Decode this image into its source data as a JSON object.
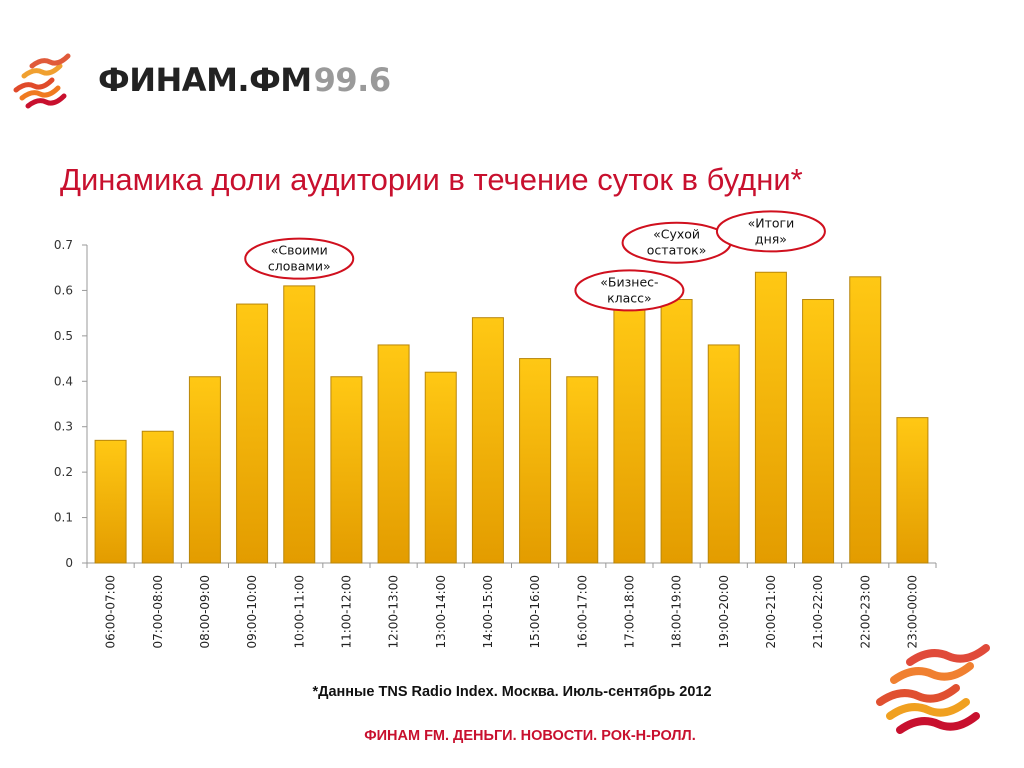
{
  "logo": {
    "name": "ФИНАМ.ФМ",
    "frequency": "99.6"
  },
  "title": "Динамика доли аудитории в течение суток в будни*",
  "footnote": "*Данные TNS Radio Index. Москва. Июль-сентябрь 2012",
  "slogan": "ФИНАМ FM. ДЕНЬГИ. НОВОСТИ. РОК-Н-РОЛЛ.",
  "colors": {
    "accent": "#c8102e",
    "bar_top": "#ffc40a",
    "bar_bottom": "#e8a300",
    "bar_edge": "#b07800"
  },
  "chart_data": {
    "type": "bar",
    "title": "",
    "xlabel": "",
    "ylabel": "",
    "ylim": [
      0,
      0.7
    ],
    "yticks": [
      0,
      0.1,
      0.2,
      0.3,
      0.4,
      0.5,
      0.6,
      0.7
    ],
    "ytick_labels": [
      "0",
      "0.1",
      "0.2",
      "0.3",
      "0.4",
      "0.5",
      "0.6",
      "0.7"
    ],
    "grid": false,
    "legend": "none",
    "categories": [
      "06:00-07:00",
      "07:00-08:00",
      "08:00-09:00",
      "09:00-10:00",
      "10:00-11:00",
      "11:00-12:00",
      "12:00-13:00",
      "13:00-14:00",
      "14:00-15:00",
      "15:00-16:00",
      "16:00-17:00",
      "17:00-18:00",
      "18:00-19:00",
      "19:00-20:00",
      "20:00-21:00",
      "21:00-22:00",
      "22:00-23:00",
      "23:00-00:00"
    ],
    "values": [
      0.27,
      0.29,
      0.41,
      0.57,
      0.61,
      0.41,
      0.48,
      0.42,
      0.54,
      0.45,
      0.41,
      0.56,
      0.58,
      0.48,
      0.64,
      0.58,
      0.63,
      0.32
    ],
    "annotations": [
      {
        "lines": [
          "«Своими",
          "словами»"
        ],
        "category": "10:00-11:00",
        "value": 0.67
      },
      {
        "lines": [
          "«Сухой",
          "остаток»"
        ],
        "category": "18:00-19:00",
        "value": 0.705
      },
      {
        "lines": [
          "«Бизнес-",
          "класс»"
        ],
        "category": "17:00-18:00",
        "value": 0.6
      },
      {
        "lines": [
          "«Итоги",
          "дня»"
        ],
        "category": "20:00-21:00",
        "value": 0.73
      }
    ]
  }
}
